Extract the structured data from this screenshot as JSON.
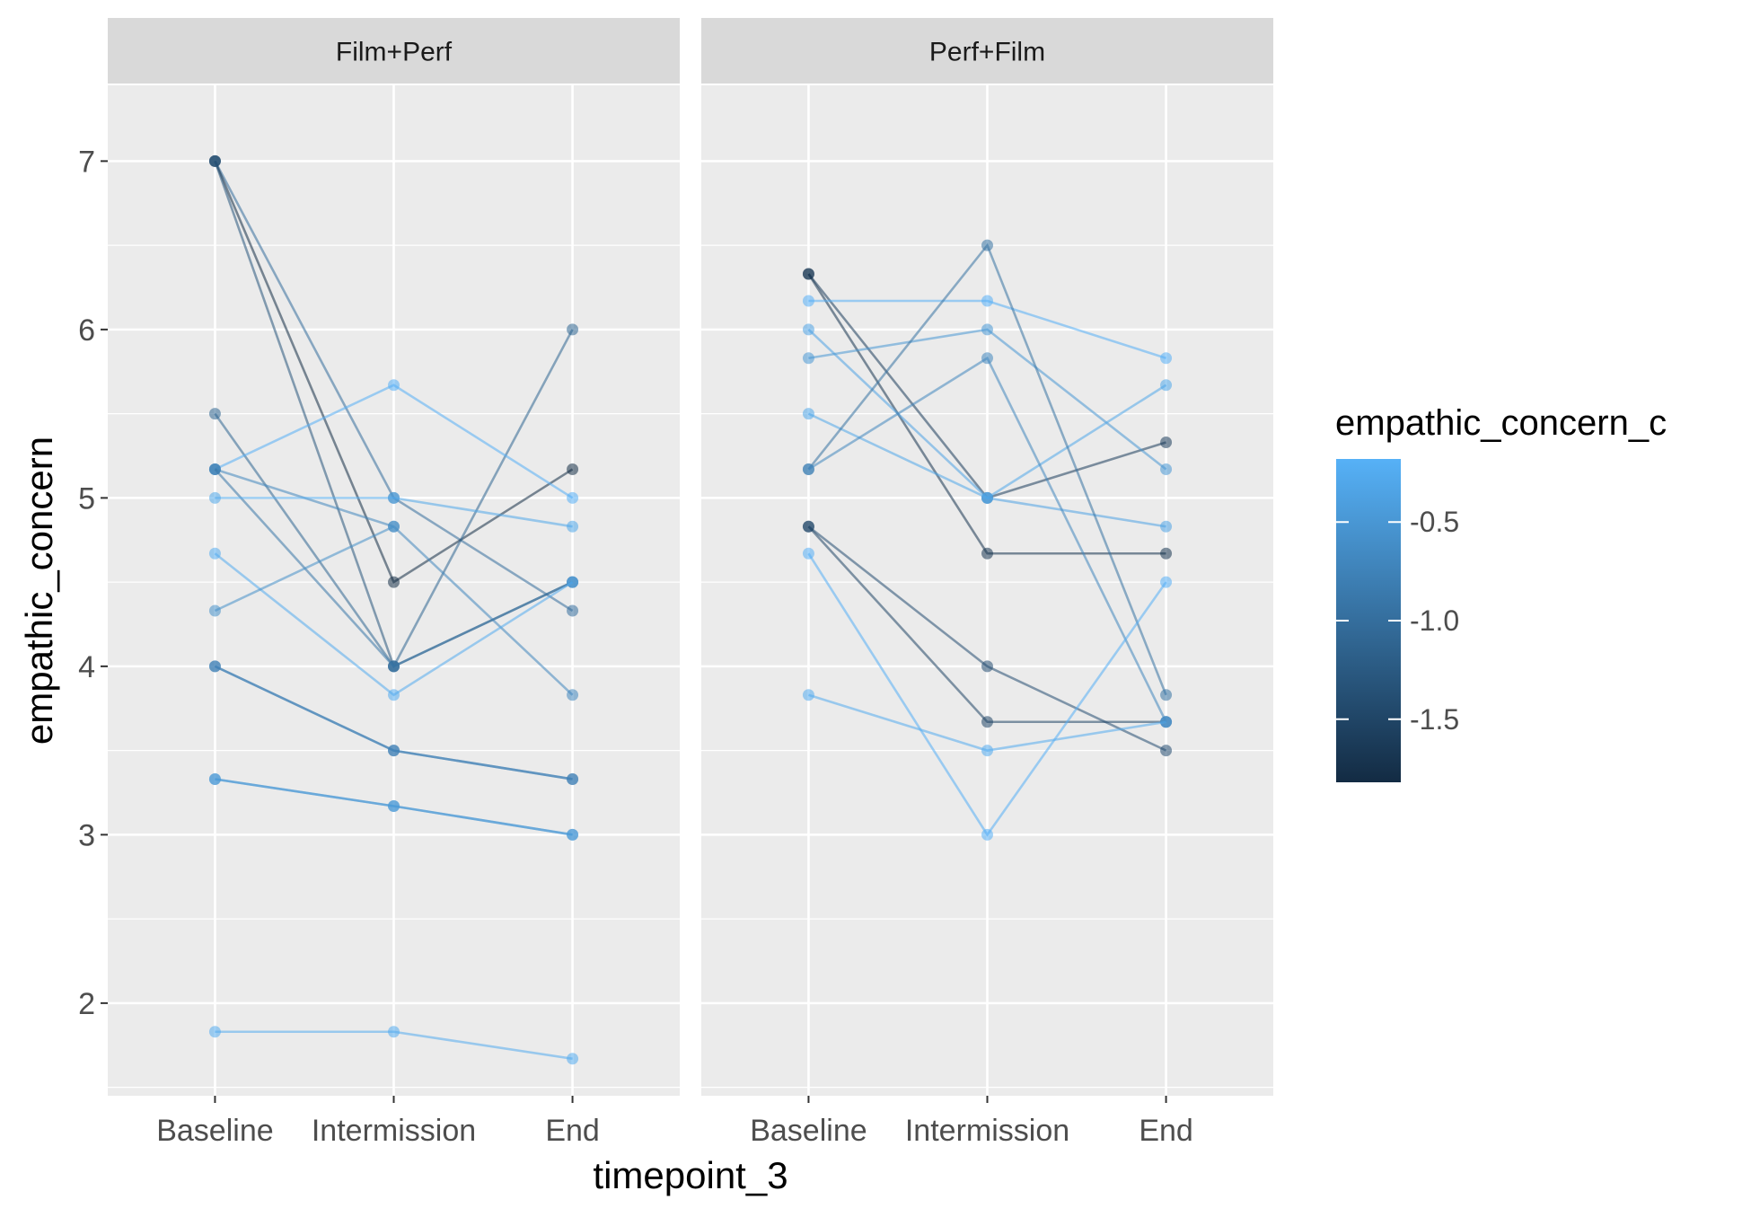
{
  "chart_data": {
    "type": "line",
    "xlabel": "timepoint_3",
    "ylabel": "empathic_concern",
    "x_categories": [
      "Baseline",
      "Intermission",
      "End"
    ],
    "ylim": [
      1.45,
      7.45
    ],
    "y_ticks": [
      2,
      3,
      4,
      5,
      6,
      7
    ],
    "y_tick_labels": [
      "2",
      "3",
      "4",
      "5",
      "6",
      "7"
    ],
    "grid": true,
    "legend": {
      "title": "empathic_concern_c",
      "position": "right",
      "type": "colorbar",
      "range": [
        -1.82,
        -0.18
      ],
      "ticks": [
        -0.5,
        -1.0,
        -1.5
      ],
      "tick_labels": [
        "-0.5",
        "-1.0",
        "-1.5"
      ],
      "low_color": "#132b43",
      "high_color": "#56b1f7"
    },
    "panels": [
      {
        "name": "Film+Perf",
        "series": [
          {
            "values": [
              7.0,
              5.0,
              4.33
            ],
            "color_value": -1.0
          },
          {
            "values": [
              7.0,
              4.5,
              5.17
            ],
            "color_value": -1.8
          },
          {
            "values": [
              7.0,
              4.0,
              4.5
            ],
            "color_value": -1.3
          },
          {
            "values": [
              5.5,
              4.0,
              6.0
            ],
            "color_value": -1.1
          },
          {
            "values": [
              5.17,
              5.67,
              5.0
            ],
            "color_value": -0.2
          },
          {
            "values": [
              5.17,
              4.83,
              3.83
            ],
            "color_value": -0.7
          },
          {
            "values": [
              5.17,
              4.0,
              4.5
            ],
            "color_value": -0.9
          },
          {
            "values": [
              5.0,
              5.0,
              4.83
            ],
            "color_value": -0.3
          },
          {
            "values": [
              4.67,
              3.83,
              4.5
            ],
            "color_value": -0.25
          },
          {
            "values": [
              4.33,
              4.83,
              null
            ],
            "color_value": -0.6
          },
          {
            "values": [
              4.0,
              3.5,
              3.33
            ],
            "color_value": -0.85
          },
          {
            "values": [
              4.0,
              3.5,
              3.33
            ],
            "color_value": -0.75
          },
          {
            "values": [
              3.33,
              3.17,
              3.0
            ],
            "color_value": -0.55
          },
          {
            "values": [
              3.33,
              3.17,
              3.0
            ],
            "color_value": -0.45
          },
          {
            "values": [
              1.83,
              1.83,
              1.67
            ],
            "color_value": -0.25
          }
        ]
      },
      {
        "name": "Perf+Film",
        "series": [
          {
            "values": [
              6.33,
              5.0,
              5.33
            ],
            "color_value": -1.6
          },
          {
            "values": [
              6.33,
              4.67,
              4.67
            ],
            "color_value": -1.7
          },
          {
            "values": [
              6.17,
              6.17,
              5.83
            ],
            "color_value": -0.2
          },
          {
            "values": [
              6.0,
              5.0,
              4.83
            ],
            "color_value": -0.35
          },
          {
            "values": [
              5.83,
              6.0,
              5.17
            ],
            "color_value": -0.5
          },
          {
            "values": [
              5.5,
              5.0,
              5.67
            ],
            "color_value": -0.3
          },
          {
            "values": [
              5.17,
              6.5,
              3.83
            ],
            "color_value": -0.95
          },
          {
            "values": [
              5.17,
              5.83,
              3.67
            ],
            "color_value": -0.7
          },
          {
            "values": [
              4.83,
              4.0,
              3.5
            ],
            "color_value": -1.4
          },
          {
            "values": [
              4.83,
              3.67,
              3.67
            ],
            "color_value": -1.5
          },
          {
            "values": [
              4.67,
              3.0,
              4.5
            ],
            "color_value": -0.2
          },
          {
            "values": [
              3.83,
              3.5,
              3.67
            ],
            "color_value": -0.25
          }
        ]
      }
    ]
  }
}
